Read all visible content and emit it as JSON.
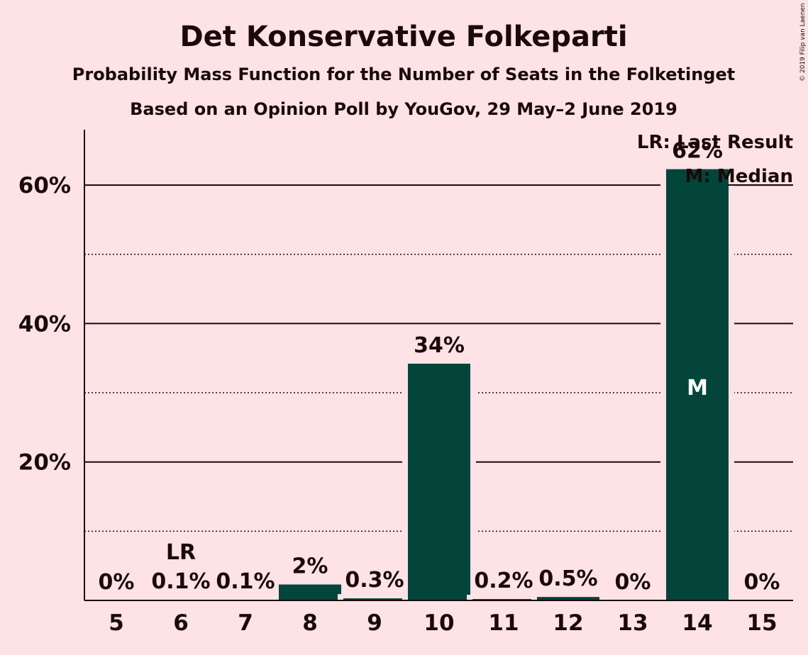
{
  "title": "Det Konservative Folkeparti",
  "subtitle": "Probability Mass Function for the Number of Seats in the Folketinget",
  "subtitle2": "Based on an Opinion Poll by YouGov, 29 May–2 June 2019",
  "copyright": "© 2019 Filip van Laenen",
  "legend": {
    "last_result": "LR: Last Result",
    "median": "M: Median"
  },
  "colors": {
    "bar": "#03453a",
    "background": "#fde2e6",
    "text": "#1a0a0a"
  },
  "chart_data": {
    "type": "bar",
    "categories": [
      "5",
      "6",
      "7",
      "8",
      "9",
      "10",
      "11",
      "12",
      "13",
      "14",
      "15"
    ],
    "values": [
      0,
      0.1,
      0.1,
      2.3,
      0.3,
      34.2,
      0.2,
      0.5,
      0,
      62.3,
      0
    ],
    "value_labels": [
      "0%",
      "0.1%",
      "0.1%",
      "2%",
      "0.3%",
      "34%",
      "0.2%",
      "0.5%",
      "0%",
      "62%",
      "0%"
    ],
    "yticks": [
      20,
      40,
      60
    ],
    "ytick_labels": [
      "20%",
      "40%",
      "60%"
    ],
    "ylim": [
      0,
      68
    ],
    "last_result": "6",
    "last_result_label": "LR",
    "median": "14",
    "median_label": "M",
    "grid": "solid lines at labelled ticks, dotted lines at 10% intervals between",
    "legend_position": "top-right"
  }
}
